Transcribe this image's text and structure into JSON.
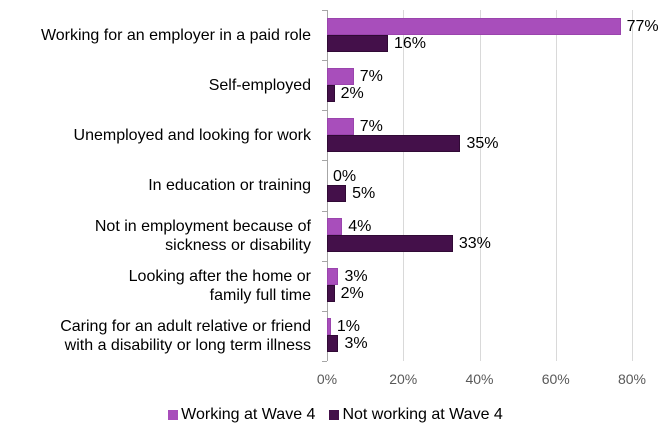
{
  "chart_data": {
    "type": "bar",
    "orientation": "horizontal",
    "title": "",
    "xlabel": "",
    "ylabel": "",
    "categories": [
      "Working for an employer in a paid role",
      "Self-employed",
      "Unemployed and looking for work",
      "In education or training",
      "Not in employment because of sickness or disability",
      "Looking after the home or family full time",
      "Caring for an adult relative or friend with a disability or long term illness"
    ],
    "category_lines": [
      [
        "Working for an employer in a paid role"
      ],
      [
        "Self-employed"
      ],
      [
        "Unemployed and looking for work"
      ],
      [
        "In education or training"
      ],
      [
        "Not in employment because of",
        "sickness or disability"
      ],
      [
        "Looking after the home or",
        "family full time"
      ],
      [
        "Caring for an adult relative or friend",
        "with a disability or long term illness"
      ]
    ],
    "series": [
      {
        "name": "Working at Wave 4",
        "color": "#A84EBB",
        "values": [
          77,
          7,
          7,
          0,
          4,
          3,
          1
        ]
      },
      {
        "name": "Not working at Wave 4",
        "color": "#44104A",
        "values": [
          16,
          2,
          35,
          5,
          33,
          2,
          3
        ]
      }
    ],
    "xlim": [
      0,
      80
    ],
    "xticks": [
      "0%",
      "20%",
      "40%",
      "60%",
      "80%"
    ],
    "value_format": "percent",
    "grid": true,
    "legend_position": "bottom"
  }
}
